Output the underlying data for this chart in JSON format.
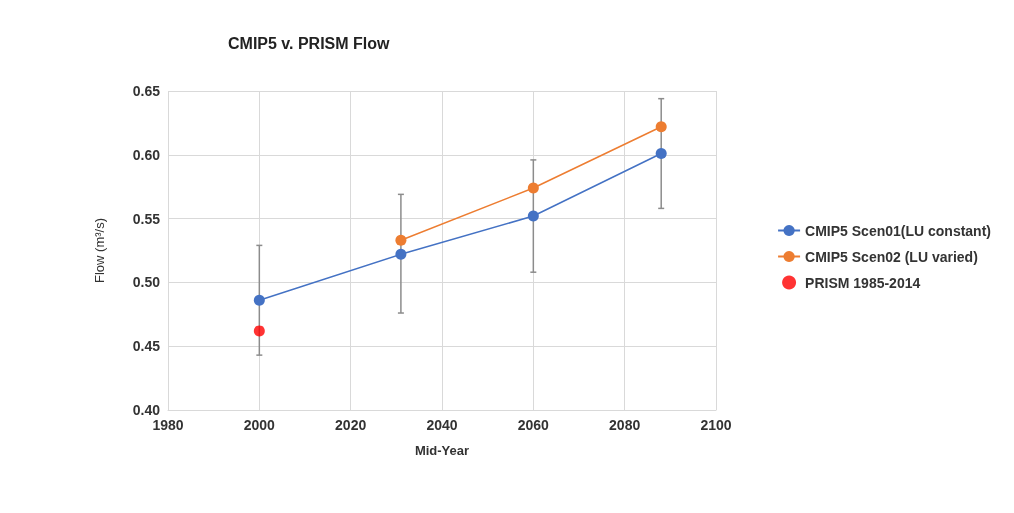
{
  "chart_data": {
    "type": "line",
    "title": "CMIP5 v. PRISM Flow",
    "xlabel": "Mid-Year",
    "ylabel": "Flow (m³/s)",
    "xlim": [
      1980,
      2100
    ],
    "xticks": [
      1980,
      2000,
      2020,
      2040,
      2060,
      2080,
      2100
    ],
    "ylim": [
      0.4,
      0.65
    ],
    "yticks": [
      {
        "value": 0.4,
        "label": "0.40"
      },
      0.45,
      {
        "value": 0.5,
        "label": "0.50"
      },
      0.55,
      {
        "value": 0.6,
        "label": "0.60"
      },
      0.65
    ],
    "grid": true,
    "legend": "right",
    "marker": "circle",
    "series": [
      {
        "name": "CMIP5 Scen01(LU constant)",
        "color": "#4472c4",
        "x": [
          2000,
          2031,
          2060,
          2088
        ],
        "values": [
          0.486,
          0.522,
          0.552,
          0.601
        ],
        "errors": [
          [
            0.443,
            0.529
          ],
          [
            0.476,
            0.569
          ],
          [
            0.508,
            0.596
          ],
          [
            0.558,
            0.644
          ]
        ]
      },
      {
        "name": "CMIP5 Scen02 (LU varied)",
        "color": "#ed7d31",
        "x": [
          2031,
          2060,
          2088
        ],
        "values": [
          0.533,
          0.574,
          0.622
        ]
      },
      {
        "name": "PRISM 1985-2014",
        "type": "scatter",
        "color": "#ff0000",
        "x": [
          2000
        ],
        "values": [
          0.462
        ]
      }
    ]
  }
}
